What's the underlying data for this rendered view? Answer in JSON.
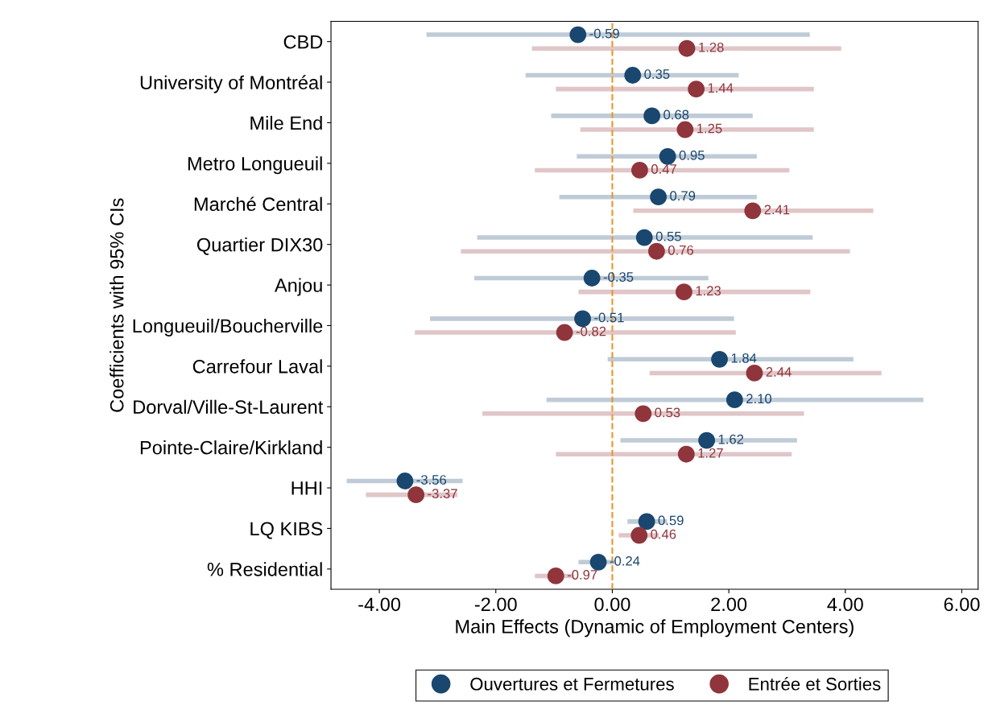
{
  "chart_data": {
    "type": "scatter",
    "orientation": "horizontal",
    "xlabel": "Main Effects (Dynamic of Employment Centers)",
    "ylabel": "Coefficients with 95% CIs",
    "categories": [
      "CBD",
      "University of Montréal",
      "Mile End",
      "Metro Longueuil",
      "Marché Central",
      "Quartier DIX30",
      "Anjou",
      "Longueuil/Boucherville",
      "Carrefour Laval",
      "Dorval/Ville-St-Laurent",
      "Pointe-Claire/Kirkland",
      "HHI",
      "LQ KIBS",
      "% Residential"
    ],
    "series": [
      {
        "name": "Ouvertures et Fermetures",
        "color": "#1a476f",
        "values": [
          -0.59,
          0.35,
          0.68,
          0.95,
          0.79,
          0.55,
          -0.35,
          -0.51,
          1.84,
          2.1,
          1.62,
          -3.56,
          0.59,
          -0.24
        ],
        "value_labels": [
          "-0.59",
          "0.35",
          "0.68",
          "0.95",
          "0.79",
          "0.55",
          "-0.35",
          "-0.51",
          "1.84",
          "2.10",
          "1.62",
          "-3.56",
          "0.59",
          "-0.24"
        ],
        "errors": [
          [
            -3.19,
            3.39
          ],
          [
            -1.49,
            2.17
          ],
          [
            -1.05,
            2.41
          ],
          [
            -0.61,
            2.48
          ],
          [
            -0.91,
            2.48
          ],
          [
            -2.32,
            3.44
          ],
          [
            -2.37,
            1.65
          ],
          [
            -3.13,
            2.09
          ],
          [
            -0.08,
            4.14
          ],
          [
            -1.13,
            5.34
          ],
          [
            0.14,
            3.17
          ],
          [
            -4.56,
            -2.57
          ],
          [
            0.26,
            0.94
          ],
          [
            -0.58,
            0.06
          ]
        ]
      },
      {
        "name": "Entrée et Sorties",
        "color": "#90353b",
        "values": [
          1.28,
          1.44,
          1.25,
          0.47,
          2.41,
          0.76,
          1.23,
          -0.82,
          2.44,
          0.53,
          1.27,
          -3.37,
          0.46,
          -0.97
        ],
        "value_labels": [
          "1.28",
          "1.44",
          "1.25",
          "0.47",
          "2.41",
          "0.76",
          "1.23",
          "-0.82",
          "2.44",
          "0.53",
          "1.27",
          "-3.37",
          "0.46",
          "-0.97"
        ],
        "errors": [
          [
            -1.38,
            3.93
          ],
          [
            -0.97,
            3.46
          ],
          [
            -0.55,
            3.46
          ],
          [
            -1.33,
            3.04
          ],
          [
            0.36,
            4.48
          ],
          [
            -2.6,
            4.08
          ],
          [
            -0.58,
            3.4
          ],
          [
            -3.39,
            2.12
          ],
          [
            0.64,
            4.62
          ],
          [
            -2.23,
            3.29
          ],
          [
            -0.97,
            3.08
          ],
          [
            -4.23,
            -2.66
          ],
          [
            0.11,
            0.8
          ],
          [
            -1.33,
            -0.66
          ]
        ]
      }
    ],
    "xlim": [
      -4.83,
      6.28
    ],
    "xticks": [
      {
        "value": -4,
        "label": "-4.00"
      },
      {
        "value": -2,
        "label": "-2.00"
      },
      {
        "value": 0,
        "label": "0.00"
      },
      {
        "value": 2,
        "label": "2.00"
      },
      {
        "value": 4,
        "label": "4.00"
      },
      {
        "value": 6,
        "label": "6.00"
      }
    ],
    "ref_lines": [
      {
        "axis": "x",
        "value": 0,
        "color": "#e8962e",
        "line_style": "dashed"
      }
    ],
    "marker": "circle",
    "legend": "bottom"
  }
}
